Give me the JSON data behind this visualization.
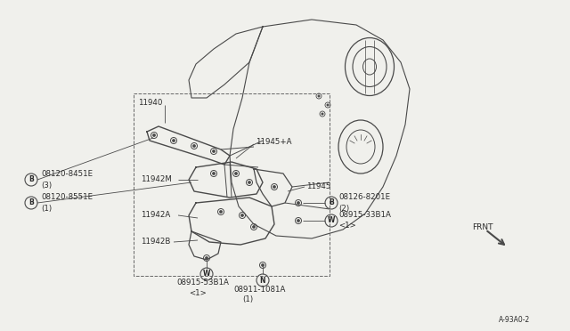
{
  "bg_color": "#f0f0ec",
  "line_color": "#4a4a4a",
  "text_color": "#2a2a2a",
  "figsize": [
    6.4,
    3.72
  ],
  "dpi": 100,
  "ref_code": "A-93A0-2",
  "xlim": [
    0,
    640
  ],
  "ylim": [
    0,
    372
  ]
}
